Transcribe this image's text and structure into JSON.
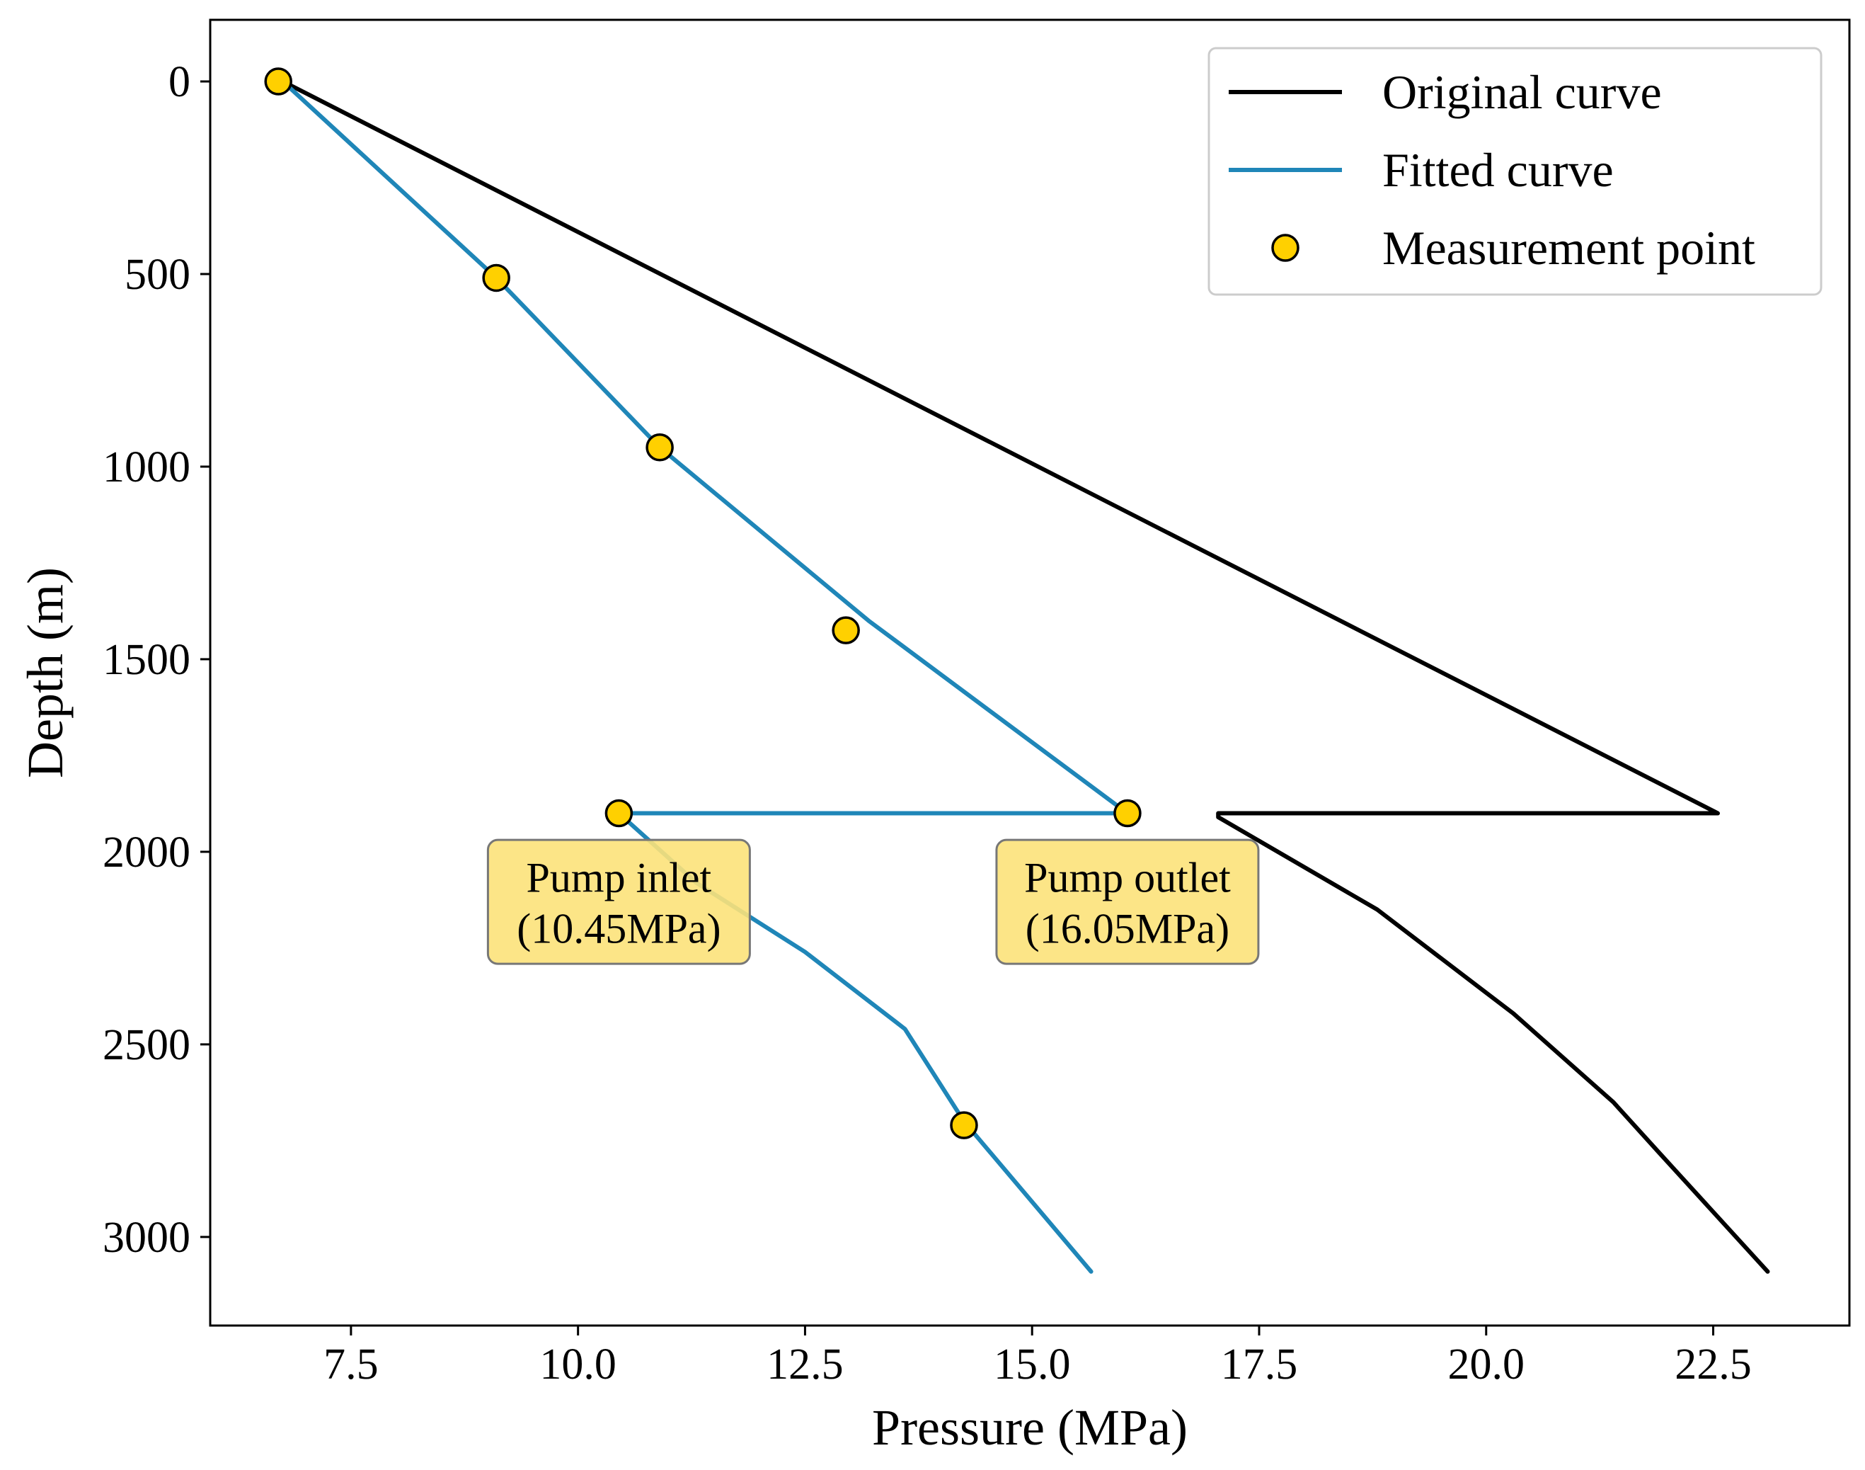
{
  "chart_data": {
    "type": "line",
    "xlabel": "Pressure (MPa)",
    "ylabel": "Depth (m)",
    "xlim": [
      5.95,
      24.0
    ],
    "ylim": [
      3230,
      -160
    ],
    "y_inverted": true,
    "xticks": [
      7.5,
      10.0,
      12.5,
      15.0,
      17.5,
      20.0,
      22.5
    ],
    "xtick_labels": [
      "7.5",
      "10.0",
      "12.5",
      "15.0",
      "17.5",
      "20.0",
      "22.5"
    ],
    "yticks": [
      0,
      500,
      1000,
      1500,
      2000,
      2500,
      3000
    ],
    "ytick_labels": [
      "0",
      "500",
      "1000",
      "1500",
      "2000",
      "2500",
      "3000"
    ],
    "grid": false,
    "legend_position": "top-right",
    "series": [
      {
        "name": "Original curve",
        "color": "#000000",
        "style": "line",
        "points": [
          [
            6.75,
            0
          ],
          [
            22.55,
            1900
          ],
          [
            17.05,
            1900
          ],
          [
            17.05,
            1910
          ],
          [
            18.8,
            2150
          ],
          [
            20.3,
            2420
          ],
          [
            21.4,
            2650
          ],
          [
            21.9,
            2780
          ],
          [
            23.1,
            3090
          ]
        ]
      },
      {
        "name": "Fitted curve",
        "color": "#1f86b8",
        "style": "line",
        "points": [
          [
            6.75,
            0
          ],
          [
            9.1,
            510
          ],
          [
            10.9,
            950
          ],
          [
            13.2,
            1400
          ],
          [
            16.05,
            1900
          ],
          [
            10.45,
            1900
          ],
          [
            11.3,
            2080
          ],
          [
            12.5,
            2260
          ],
          [
            13.6,
            2460
          ],
          [
            14.25,
            2700
          ],
          [
            15.65,
            3090
          ]
        ]
      },
      {
        "name": "Measurement point",
        "color": "#ffd000",
        "style": "scatter",
        "points": [
          [
            6.7,
            0
          ],
          [
            9.1,
            510
          ],
          [
            10.9,
            950
          ],
          [
            12.95,
            1425
          ],
          [
            10.45,
            1900
          ],
          [
            16.05,
            1900
          ],
          [
            14.25,
            2710
          ]
        ]
      }
    ],
    "annotations": [
      {
        "label": "pump-inlet",
        "lines": [
          "Pump inlet",
          "(10.45MPa)"
        ],
        "x": 10.45,
        "y": 2130
      },
      {
        "label": "pump-outlet",
        "lines": [
          "Pump outlet",
          "(16.05MPa)"
        ],
        "x": 16.05,
        "y": 2130
      }
    ],
    "annotation_color": "#fce27a"
  }
}
